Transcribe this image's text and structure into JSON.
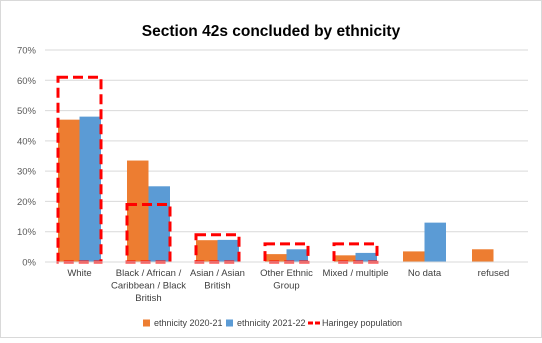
{
  "chart_data": {
    "type": "bar",
    "title": "Section 42s concluded by ethnicity",
    "xlabel": "",
    "ylabel": "",
    "ylim": [
      0,
      70
    ],
    "y_tick_labels": [
      "0%",
      "10%",
      "20%",
      "30%",
      "40%",
      "50%",
      "60%",
      "70%"
    ],
    "grid": true,
    "legend_position": "bottom",
    "categories": [
      [
        "White"
      ],
      [
        "Black / African /",
        "Caribbean / Black",
        "British"
      ],
      [
        "Asian / Asian",
        "British"
      ],
      [
        "Other Ethnic",
        "Group"
      ],
      [
        "Mixed / multiple"
      ],
      [
        "No data"
      ],
      [
        "refused"
      ]
    ],
    "series": [
      {
        "name": "ethnicity 2020-21",
        "kind": "bar",
        "color": "#ED7D31",
        "values": [
          47,
          33.5,
          7.2,
          2.6,
          2.2,
          3.5,
          4.2
        ]
      },
      {
        "name": "ethnicity 2021-22",
        "kind": "bar",
        "color": "#5B9BD5",
        "values": [
          48,
          25,
          7.3,
          4.2,
          3.0,
          13,
          0
        ]
      },
      {
        "name": "Haringey population",
        "kind": "outline",
        "color": "#FF0000",
        "values": [
          61,
          19,
          9,
          6,
          6,
          null,
          null
        ]
      }
    ]
  }
}
